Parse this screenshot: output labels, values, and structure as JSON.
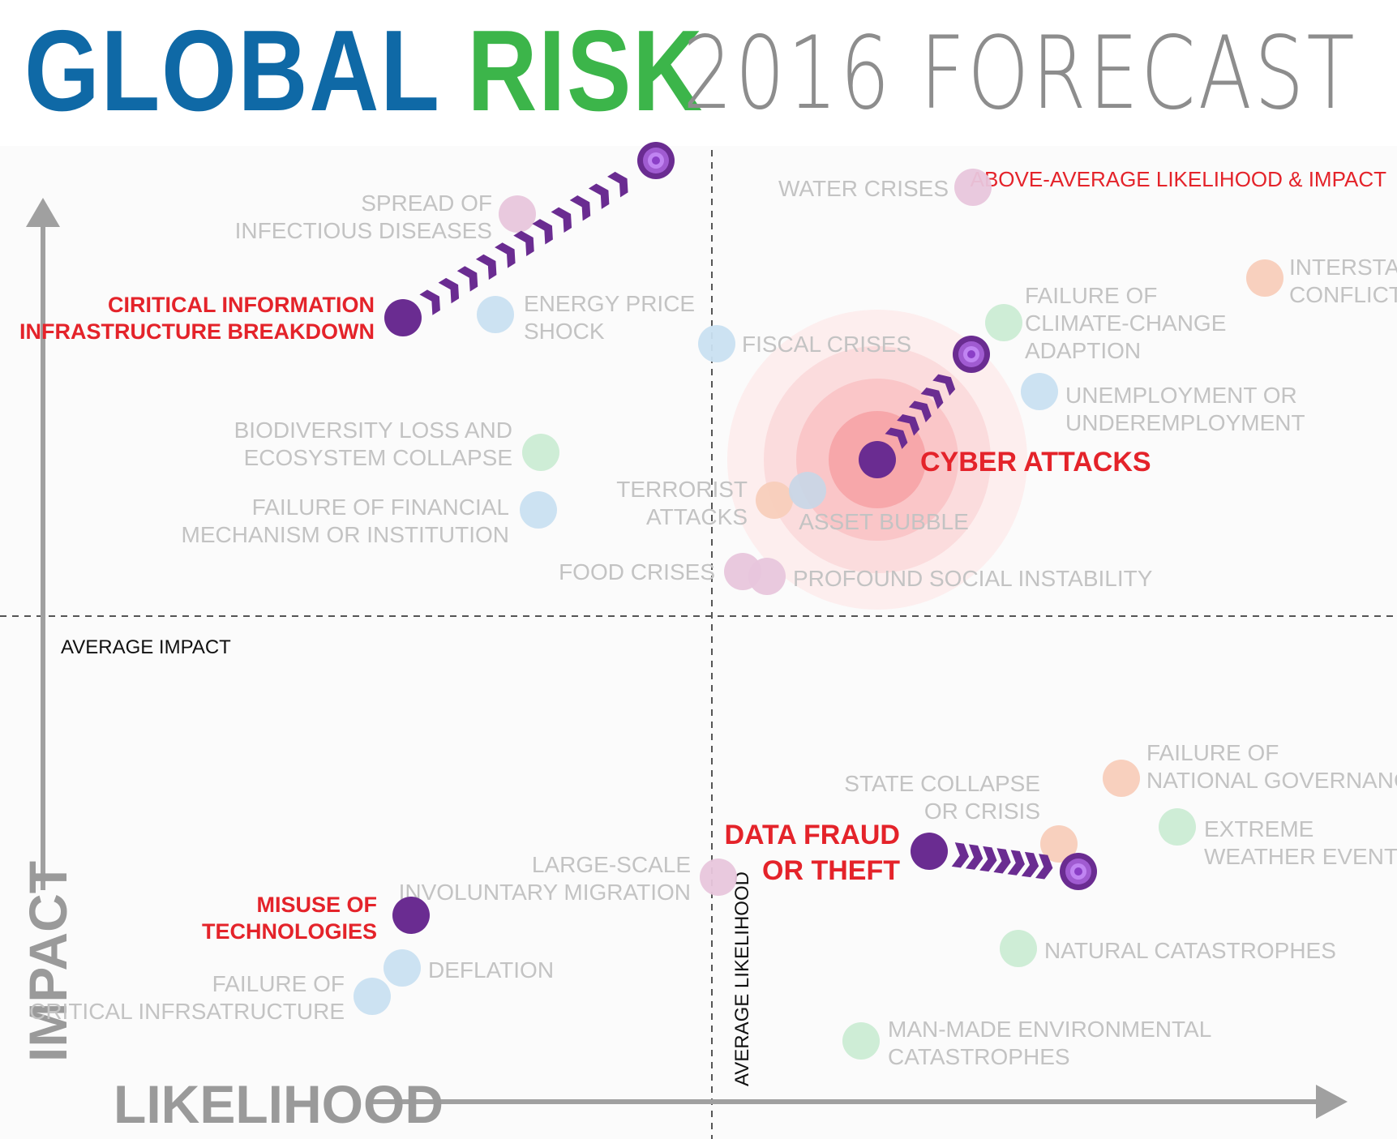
{
  "title": {
    "part1": "GLOBAL",
    "part2": "RISK",
    "part3": "2016 FORECAST"
  },
  "colors": {
    "blue": "#0f69a6",
    "green": "#3cb54a",
    "highlight": "#e4232a",
    "purple": "#6a2c91"
  },
  "chart_data": {
    "type": "scatter",
    "xlabel": "LIKELIHOOD",
    "ylabel": "IMPACT",
    "average_impact_label": "AVERAGE IMPACT",
    "average_likelihood_label": "AVERAGE LIKELIHOOD",
    "quadrant_label": "ABOVE-AVERAGE LIKELIHOOD & IMPACT",
    "points": [
      {
        "lines": [
          "WATER CRISES"
        ],
        "category": "societal",
        "color": "#e8c6dc"
      },
      {
        "lines": [
          "SPREAD OF",
          "INFECTIOUS DISEASES"
        ],
        "category": "societal",
        "color": "#e8c6dc"
      },
      {
        "lines": [
          "INTERSTATE",
          "CONFLICT"
        ],
        "category": "geopolitical",
        "color": "#f8cdbb"
      },
      {
        "lines": [
          "ENERGY PRICE",
          "SHOCK"
        ],
        "category": "economic",
        "color": "#c9e0f1"
      },
      {
        "lines": [
          "FAILURE OF",
          "CLIMATE-CHANGE",
          "ADAPTION"
        ],
        "category": "environmental",
        "color": "#cbecd4"
      },
      {
        "lines": [
          "FISCAL CRISES"
        ],
        "category": "economic",
        "color": "#c9e0f1"
      },
      {
        "lines": [
          "UNEMPLOYMENT OR",
          "UNDEREMPLOYMENT"
        ],
        "category": "economic",
        "color": "#c9e0f1"
      },
      {
        "lines": [
          "BIODIVERSITY LOSS AND",
          "ECOSYSTEM COLLAPSE"
        ],
        "category": "environmental",
        "color": "#cbecd4"
      },
      {
        "lines": [
          "FAILURE OF FINANCIAL",
          "MECHANISM OR INSTITUTION"
        ],
        "category": "economic",
        "color": "#c9e0f1"
      },
      {
        "lines": [
          "TERRORIST",
          "ATTACKS"
        ],
        "category": "geopolitical",
        "color": "#f8cdbb"
      },
      {
        "lines": [
          "ASSET BUBBLE"
        ],
        "category": "economic",
        "color": "#c9d6e6"
      },
      {
        "lines": [
          "FOOD CRISES"
        ],
        "category": "societal",
        "color": "#e8c6dc"
      },
      {
        "lines": [
          "PROFOUND SOCIAL INSTABILITY"
        ],
        "category": "societal",
        "color": "#e8c6dc"
      },
      {
        "lines": [
          "FAILURE OF",
          "NATIONAL GOVERNANCE"
        ],
        "category": "geopolitical",
        "color": "#f8cdbb"
      },
      {
        "lines": [
          "STATE COLLAPSE",
          "OR CRISIS"
        ],
        "category": "geopolitical",
        "color": "#f8cdbb"
      },
      {
        "lines": [
          "EXTREME",
          "WEATHER EVENTS"
        ],
        "category": "environmental",
        "color": "#cbecd4"
      },
      {
        "lines": [
          "LARGE-SCALE",
          "INVOLUNTARY MIGRATION"
        ],
        "category": "societal",
        "color": "#e8c6dc"
      },
      {
        "lines": [
          "NATURAL CATASTROPHES"
        ],
        "category": "environmental",
        "color": "#cbecd4"
      },
      {
        "lines": [
          "DEFLATION"
        ],
        "category": "economic",
        "color": "#c9e0f1"
      },
      {
        "lines": [
          "FAILURE OF",
          "CRITICAL INFRSATRUCTURE"
        ],
        "category": "economic",
        "color": "#c9e0f1"
      },
      {
        "lines": [
          "MAN-MADE ENVIRONMENTAL",
          "CATASTROPHES"
        ],
        "category": "environmental",
        "color": "#cbecd4"
      }
    ],
    "highlighted": [
      {
        "lines": [
          "CIRITICAL INFORMATION",
          "INFRASTRUCTURE BREAKDOWN"
        ]
      },
      {
        "lines": [
          "CYBER ATTACKS"
        ]
      },
      {
        "lines": [
          "DATA FRAUD",
          "OR THEFT"
        ]
      },
      {
        "lines": [
          "MISUSE OF",
          "TECHNOLOGIES"
        ]
      }
    ]
  }
}
